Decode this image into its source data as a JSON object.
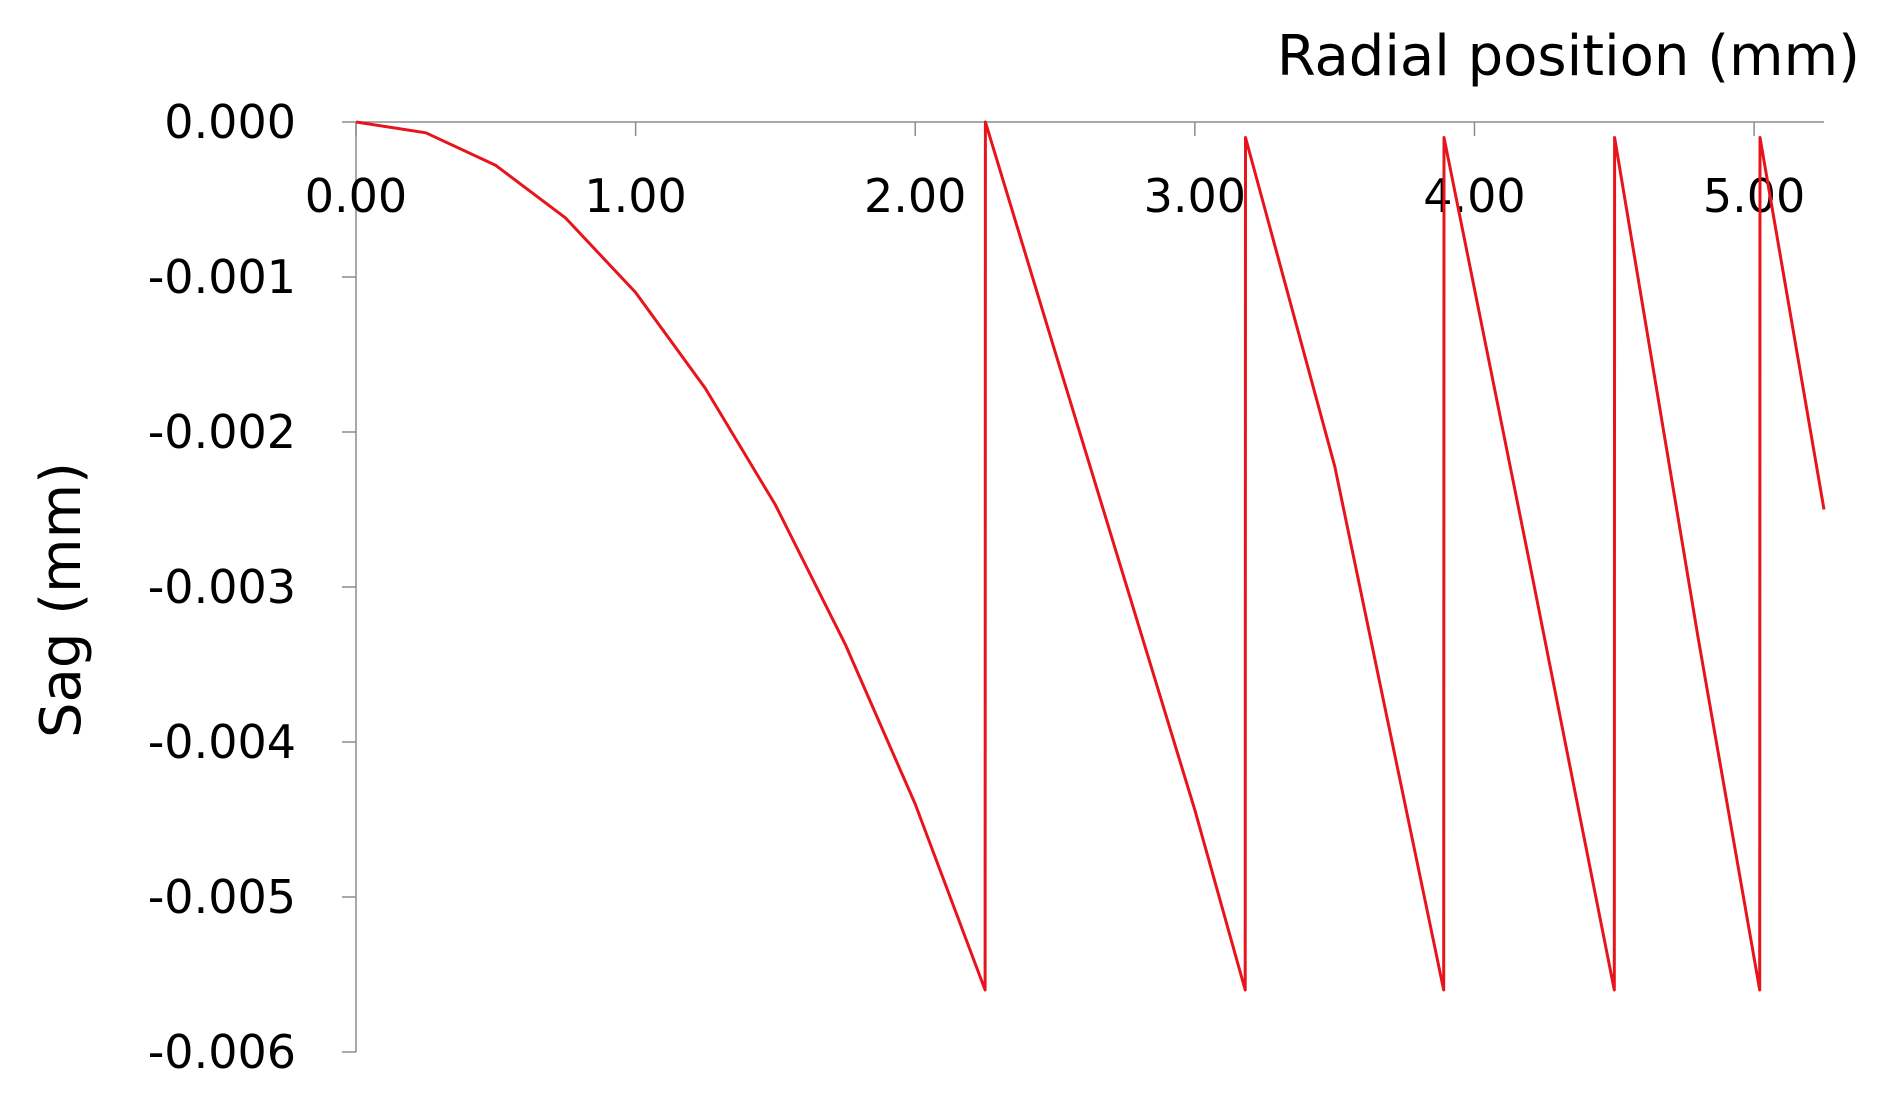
{
  "chart_data": {
    "type": "line",
    "title": "",
    "xlabel": "Radial position (mm)",
    "ylabel": "Sag (mm)",
    "xlim": [
      0,
      5.25
    ],
    "ylim": [
      -0.006,
      0.0
    ],
    "x_ticks": [
      "0.00",
      "1.00",
      "2.00",
      "3.00",
      "4.00",
      "5.00"
    ],
    "y_ticks": [
      "0.000",
      "-0.001",
      "-0.002",
      "-0.003",
      "-0.004",
      "-0.005",
      "-0.006"
    ],
    "x_axis_position": "top",
    "grid": false,
    "legend": "none",
    "series": [
      {
        "color": "#e8141b",
        "x": [
          0,
          0.25,
          0.5,
          0.75,
          1.0,
          1.25,
          1.5,
          1.75,
          2.0,
          2.25,
          2.251,
          2.5,
          2.75,
          3.0,
          3.18,
          3.181,
          3.5,
          3.89,
          3.891,
          4.2,
          4.5,
          4.501,
          4.8,
          5.02,
          5.021,
          5.25
        ],
        "y": [
          0.0,
          -7e-05,
          -0.00028,
          -0.00062,
          -0.0011,
          -0.00172,
          -0.00247,
          -0.00337,
          -0.0044,
          -0.0056,
          0.0,
          -0.00148,
          -0.00296,
          -0.00444,
          -0.0056,
          -0.0001,
          -0.00222,
          -0.0056,
          -0.0001,
          -0.00287,
          -0.0056,
          -0.0001,
          -0.00333,
          -0.0056,
          -0.0001,
          -0.0025
        ]
      }
    ]
  }
}
